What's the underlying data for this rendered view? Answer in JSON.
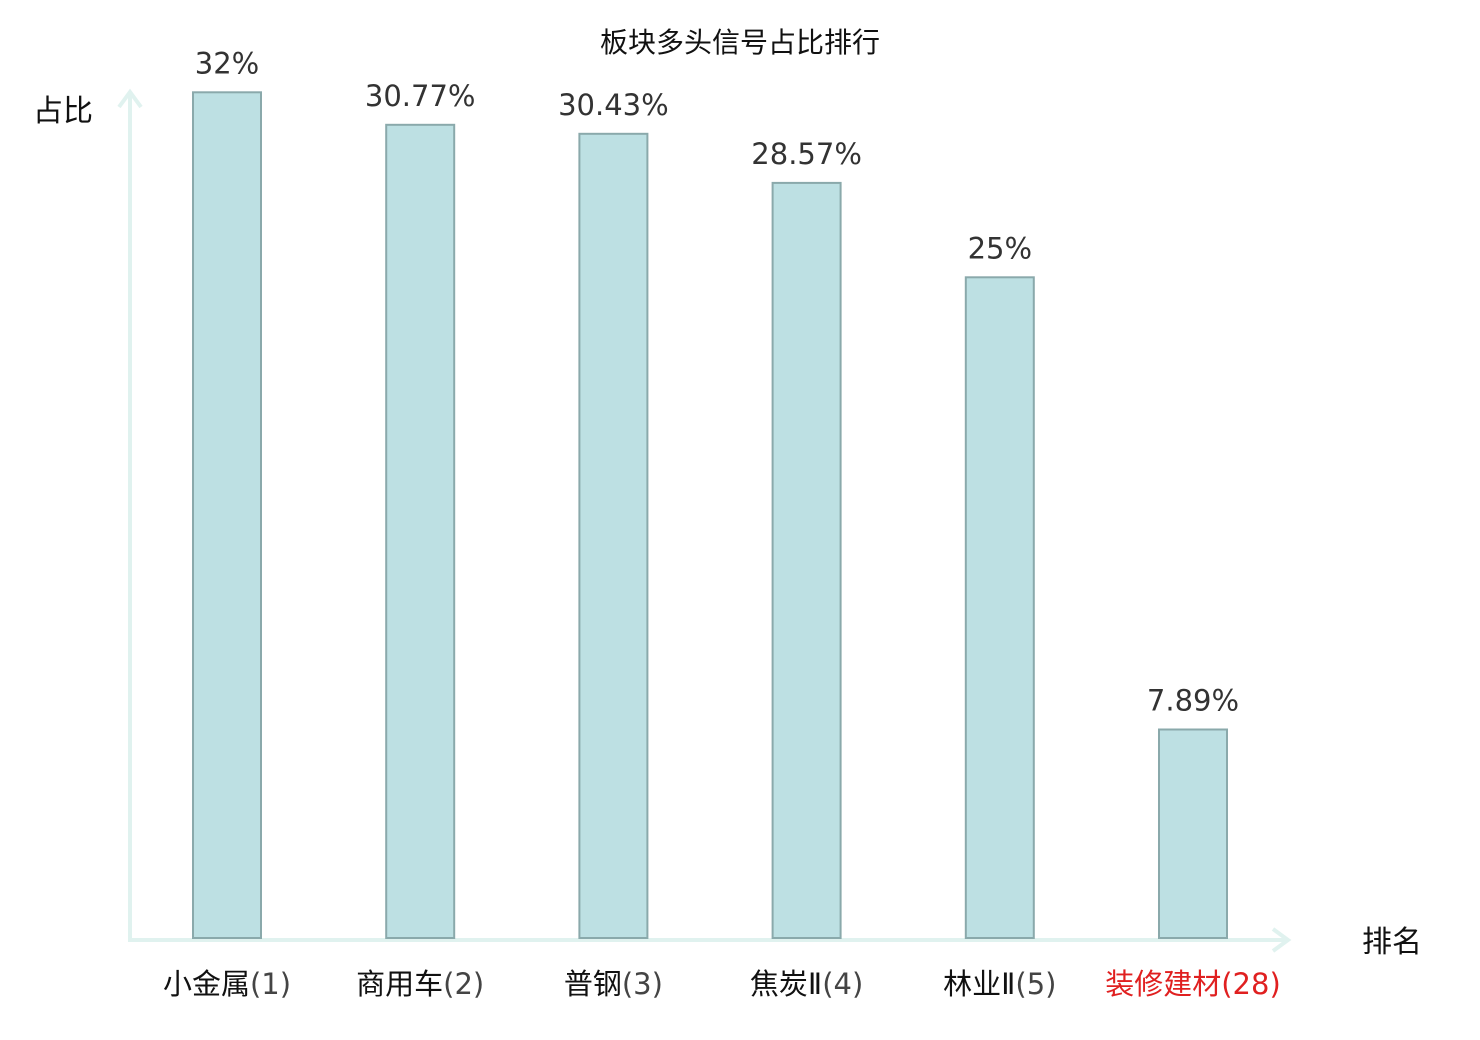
{
  "chart_data": {
    "type": "bar",
    "title": "板块多头信号占比排行",
    "xlabel": "排名",
    "ylabel": "占比",
    "ylim": [
      0,
      35
    ],
    "grid": false,
    "legend": "none",
    "categories": [
      {
        "name": "小金属",
        "rank": "(1)"
      },
      {
        "name": "商用车",
        "rank": "(2)"
      },
      {
        "name": "普钢",
        "rank": "(3)"
      },
      {
        "name": "焦炭Ⅱ",
        "rank": "(4)"
      },
      {
        "name": "林业Ⅱ",
        "rank": "(5)"
      },
      {
        "name": "装修建材",
        "rank": "(28)",
        "highlight": true
      }
    ],
    "values": [
      32,
      30.77,
      30.43,
      28.57,
      25,
      7.89
    ],
    "value_labels": [
      "32%",
      "30.77%",
      "30.43%",
      "28.57%",
      "25%",
      "7.89%"
    ],
    "colors": {
      "bar_fill": "#bde0e3",
      "bar_stroke": "#8aa9ab",
      "axis": "#e0f2ef",
      "text": "#111111",
      "value_text": "#333333",
      "rank_text": "#444444",
      "highlight": "#e02020"
    }
  }
}
